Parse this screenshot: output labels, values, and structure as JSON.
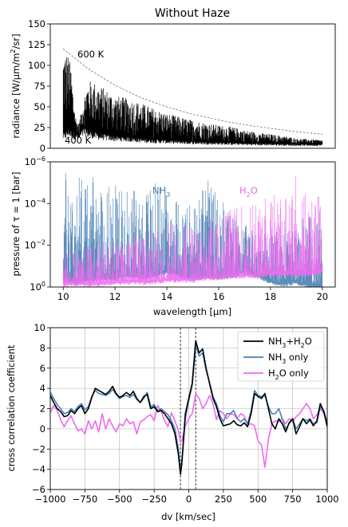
{
  "chart_data": [
    {
      "type": "line",
      "title": "Without Haze",
      "xlim": [
        9.5,
        20.5
      ],
      "ylim": [
        0,
        150
      ],
      "ylabel_parts": [
        "radiance [W/",
        "μ",
        "m/m",
        "2",
        "/sr]"
      ],
      "yticks": [
        0,
        25,
        50,
        75,
        100,
        125,
        150
      ],
      "grid": false,
      "annotations": [
        "600 K",
        "400 K"
      ],
      "reference_curves": [
        {
          "name": "600 K",
          "x": [
            10.0,
            11,
            12,
            13,
            14,
            15,
            16,
            17,
            18,
            19,
            20
          ],
          "y": [
            120,
            95,
            76,
            61,
            50,
            41,
            34,
            28.5,
            24,
            20,
            17
          ]
        },
        {
          "name": "400 K",
          "x": [
            10.0,
            11,
            12,
            13,
            14,
            15,
            16,
            17,
            18,
            19,
            20
          ],
          "y": [
            31,
            27,
            23,
            20,
            17.5,
            15,
            13,
            11.5,
            10,
            9,
            8
          ]
        }
      ],
      "series": [
        {
          "color": "#000000",
          "envelope": {
            "x": [
              10.0,
              10.1,
              10.2,
              10.3,
              10.4,
              10.5,
              10.6,
              10.7,
              10.8,
              10.9,
              11.0,
              11.2,
              11.4,
              11.6,
              11.8,
              12.0,
              12.5,
              13.0,
              13.5,
              14.0,
              14.5,
              15.0,
              15.5,
              16.0,
              16.5,
              17.0,
              17.5,
              18.0,
              18.5,
              19.0,
              19.5,
              20.0
            ],
            "upper": [
              118,
              119,
              113,
              100,
              60,
              35,
              30,
              45,
              60,
              75,
              82,
              80,
              76,
              72,
              68,
              64,
              60,
              55,
              48,
              42,
              38,
              34,
              31,
              28,
              26,
              22,
              19,
              17,
              15,
              12,
              11,
              10
            ],
            "lower": [
              18,
              20,
              25,
              22,
              20,
              18,
              16,
              22,
              25,
              24,
              22,
              20,
              18,
              17,
              16,
              15,
              14,
              12,
              11,
              10,
              9,
              8.5,
              8,
              7.5,
              7,
              6.5,
              6,
              6,
              5.5,
              5,
              5,
              5
            ]
          }
        }
      ],
      "xticks_shown": false
    },
    {
      "type": "line",
      "xlim": [
        9.5,
        20.5
      ],
      "ylim_exponent": [
        -6,
        0
      ],
      "yscale": "log",
      "y_inverted": true,
      "xlabel_parts": [
        "wavelength [",
        "μ",
        "m]"
      ],
      "ylabel_parts": [
        "pressure of ",
        "τ",
        " = 1 [bar]"
      ],
      "xticks": [
        10,
        12,
        14,
        16,
        18,
        20
      ],
      "yticks": [
        {
          "base": "10",
          "exp": "0",
          "value": 1
        },
        {
          "base": "10",
          "exp": "−2",
          "value": 0.01
        },
        {
          "base": "10",
          "exp": "−4",
          "value": 0.0001
        },
        {
          "base": "10",
          "exp": "−6",
          "value": 1e-06
        }
      ],
      "grid": false,
      "series": [
        {
          "name_parts": [
            "NH",
            "3"
          ],
          "color": "#4a81b4",
          "envelope_log10": {
            "x": [
              10.0,
              10.5,
              11.0,
              11.5,
              12.0,
              12.5,
              13.0,
              13.5,
              14.0,
              14.5,
              15.0,
              15.5,
              16.0,
              16.5,
              17.0,
              17.5,
              18.0,
              18.5,
              19.0,
              19.5,
              20.0
            ],
            "top": [
              -5.7,
              -5.7,
              -5.4,
              -5.0,
              -4.9,
              -4.7,
              -4.6,
              -5.1,
              -4.8,
              -4.2,
              -4.0,
              -5.4,
              -4.6,
              -3.5,
              -3.0,
              -2.6,
              -2.6,
              -2.8,
              -3.2,
              -3.5,
              -3.8
            ],
            "bottom": [
              -0.4,
              -0.3,
              -0.4,
              -0.5,
              -0.5,
              -0.6,
              -0.5,
              -0.6,
              -0.8,
              -0.6,
              -0.5,
              -0.6,
              -0.5,
              -0.6,
              -0.8,
              -0.6,
              -0.3,
              -0.2,
              -0.3,
              -0.1,
              -0.1
            ]
          }
        },
        {
          "name_parts": [
            "H",
            "2",
            "O"
          ],
          "color": "#ee6aee",
          "envelope_log10": {
            "x": [
              10.0,
              10.5,
              11.0,
              11.5,
              12.0,
              12.5,
              13.0,
              13.5,
              14.0,
              14.5,
              15.0,
              15.5,
              16.0,
              16.5,
              17.0,
              17.5,
              18.0,
              18.5,
              19.0,
              19.5,
              20.0
            ],
            "top": [
              -1.8,
              -1.9,
              -2.0,
              -2.2,
              -2.2,
              -2.4,
              -2.6,
              -2.8,
              -3.3,
              -3.0,
              -3.2,
              -3.3,
              -3.5,
              -3.9,
              -4.0,
              -4.3,
              -4.5,
              -4.7,
              -5.8,
              -4.4,
              -4.3
            ],
            "bottom": [
              -0.2,
              -0.2,
              -0.2,
              -0.2,
              -0.3,
              -0.3,
              -0.3,
              -0.3,
              -0.4,
              -0.4,
              -0.4,
              -0.5,
              -0.5,
              -0.6,
              -0.6,
              -0.6,
              -0.7,
              -0.7,
              -0.7,
              -0.7,
              -0.8
            ]
          }
        }
      ]
    },
    {
      "type": "line",
      "xlim": [
        -1000,
        1000
      ],
      "ylim": [
        -6,
        10
      ],
      "xlabel": "dv [km/sec]",
      "ylabel": "cross correlation coefficient",
      "xticks": [
        -1000,
        -750,
        -500,
        -250,
        0,
        250,
        500,
        750,
        1000
      ],
      "xtick_labels": [
        "−1000",
        "−750",
        "−500",
        "−250",
        "0",
        "250",
        "500",
        "750",
        "1000"
      ],
      "yticks": [
        -6,
        -4,
        -2,
        0,
        2,
        4,
        6,
        8,
        10
      ],
      "ytick_labels": [
        "−6",
        "−4",
        "−2",
        "0",
        "2",
        "4",
        "6",
        "8",
        "10"
      ],
      "grid": true,
      "vlines": [
        -60,
        50
      ],
      "legend_position": "top-right",
      "series": [
        {
          "name_parts": [
            "NH",
            "3",
            "+H",
            "2",
            "O"
          ],
          "color": "#000000",
          "x": [
            -1000,
            -975,
            -950,
            -925,
            -900,
            -875,
            -850,
            -825,
            -800,
            -775,
            -750,
            -725,
            -700,
            -675,
            -650,
            -625,
            -600,
            -575,
            -550,
            -525,
            -500,
            -475,
            -450,
            -425,
            -400,
            -375,
            -350,
            -325,
            -300,
            -275,
            -250,
            -225,
            -200,
            -175,
            -150,
            -125,
            -100,
            -75,
            -60,
            -50,
            -25,
            0,
            25,
            40,
            50,
            75,
            100,
            125,
            150,
            175,
            200,
            225,
            250,
            275,
            300,
            325,
            350,
            375,
            400,
            425,
            450,
            475,
            500,
            525,
            550,
            575,
            600,
            625,
            650,
            675,
            700,
            725,
            750,
            775,
            800,
            825,
            850,
            875,
            900,
            925,
            950,
            975,
            1000
          ],
          "y": [
            3.3,
            2.6,
            2.0,
            1.7,
            1.2,
            1.3,
            1.8,
            1.5,
            2.0,
            2.3,
            1.5,
            2.0,
            3.1,
            4.0,
            3.8,
            3.6,
            3.4,
            3.7,
            4.2,
            3.5,
            3.1,
            3.3,
            3.6,
            3.3,
            3.7,
            3.0,
            2.6,
            3.2,
            3.4,
            2.0,
            2.2,
            1.7,
            1.8,
            1.5,
            1.0,
            0.5,
            -0.5,
            -2.5,
            -4.5,
            -3.5,
            1.5,
            3.0,
            4.5,
            7.0,
            8.7,
            7.5,
            7.9,
            6.0,
            4.5,
            3.0,
            2.2,
            1.0,
            0.3,
            0.4,
            0.5,
            0.8,
            0.4,
            0.3,
            0.6,
            0.2,
            1.5,
            3.5,
            3.2,
            3.0,
            3.5,
            2.0,
            0.5,
            0.0,
            1.0,
            0.5,
            -0.3,
            0.6,
            1.0,
            -0.5,
            0.2,
            1.0,
            0.5,
            0.9,
            0.3,
            0.8,
            2.5,
            1.7,
            0.2
          ]
        },
        {
          "name_parts": [
            "NH",
            "3",
            " only"
          ],
          "color": "#4a81b4",
          "x": [
            -1000,
            -975,
            -950,
            -925,
            -900,
            -875,
            -850,
            -825,
            -800,
            -775,
            -750,
            -725,
            -700,
            -675,
            -650,
            -625,
            -600,
            -575,
            -550,
            -525,
            -500,
            -475,
            -450,
            -425,
            -400,
            -375,
            -350,
            -325,
            -300,
            -275,
            -250,
            -225,
            -200,
            -175,
            -150,
            -125,
            -100,
            -75,
            -60,
            -50,
            -25,
            0,
            25,
            40,
            50,
            75,
            100,
            125,
            150,
            175,
            200,
            225,
            250,
            275,
            300,
            325,
            350,
            375,
            400,
            425,
            450,
            475,
            500,
            525,
            550,
            575,
            600,
            625,
            650,
            675,
            700,
            725,
            750,
            775,
            800,
            825,
            850,
            875,
            900,
            925,
            950,
            975,
            1000
          ],
          "y": [
            3.6,
            3.0,
            2.4,
            2.0,
            1.5,
            1.6,
            2.0,
            1.7,
            2.2,
            2.5,
            1.9,
            2.2,
            3.2,
            3.8,
            3.5,
            3.4,
            3.3,
            3.5,
            3.9,
            3.4,
            3.0,
            3.2,
            3.3,
            3.1,
            3.4,
            2.9,
            2.6,
            3.0,
            3.6,
            2.2,
            2.4,
            1.8,
            2.0,
            1.7,
            1.4,
            0.8,
            0.0,
            -2.0,
            -4.2,
            -3.2,
            1.0,
            2.8,
            4.3,
            6.5,
            8.2,
            7.2,
            7.5,
            5.8,
            4.6,
            3.2,
            2.5,
            1.3,
            0.7,
            1.5,
            1.5,
            1.8,
            1.0,
            0.7,
            1.0,
            0.5,
            1.8,
            3.8,
            3.3,
            3.2,
            3.3,
            2.2,
            1.5,
            1.5,
            2.0,
            1.0,
            0.0,
            0.5,
            1.0,
            0.0,
            0.5,
            1.0,
            0.8,
            1.0,
            0.5,
            0.6,
            2.2,
            1.8,
            0.6
          ]
        },
        {
          "name_parts": [
            "H",
            "2",
            "O only"
          ],
          "color": "#ee6aee",
          "x": [
            -1000,
            -975,
            -950,
            -925,
            -900,
            -875,
            -850,
            -825,
            -800,
            -775,
            -750,
            -725,
            -700,
            -675,
            -650,
            -625,
            -600,
            -575,
            -550,
            -525,
            -500,
            -475,
            -450,
            -425,
            -400,
            -375,
            -350,
            -325,
            -300,
            -275,
            -250,
            -225,
            -200,
            -175,
            -150,
            -125,
            -100,
            -75,
            -60,
            -50,
            -25,
            0,
            25,
            40,
            50,
            75,
            100,
            125,
            150,
            175,
            200,
            225,
            250,
            275,
            300,
            325,
            350,
            375,
            400,
            425,
            450,
            475,
            500,
            525,
            550,
            575,
            600,
            625,
            650,
            675,
            700,
            725,
            750,
            775,
            800,
            825,
            850,
            875,
            900,
            925,
            950,
            975,
            1000
          ],
          "y": [
            1.6,
            2.3,
            1.8,
            0.9,
            0.2,
            0.8,
            1.3,
            0.5,
            -0.2,
            0.0,
            -0.5,
            0.8,
            0.0,
            0.8,
            -0.3,
            1.5,
            0.0,
            1.0,
            0.3,
            -0.3,
            0.5,
            0.3,
            1.0,
            0.5,
            0.7,
            -0.5,
            0.7,
            0.9,
            1.2,
            1.4,
            0.8,
            2.3,
            1.8,
            0.8,
            0.2,
            1.6,
            0.8,
            -0.2,
            -1.3,
            -1.2,
            0.3,
            1.0,
            1.5,
            2.6,
            3.5,
            3.0,
            2.0,
            2.5,
            3.3,
            2.5,
            0.9,
            1.8,
            1.5,
            1.0,
            1.5,
            1.4,
            1.0,
            1.5,
            1.3,
            0.4,
            0.5,
            0.3,
            -1.2,
            -1.6,
            -3.8,
            -1.0,
            0.5,
            0.8,
            0.7,
            1.0,
            0.5,
            1.0,
            0.7,
            1.2,
            1.5,
            2.0,
            2.5,
            2.0,
            1.0,
            1.4,
            2.0,
            1.5,
            0.8
          ]
        }
      ]
    }
  ]
}
